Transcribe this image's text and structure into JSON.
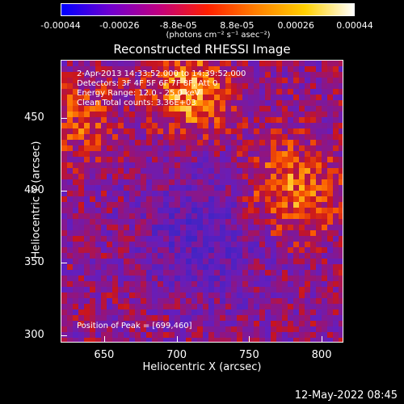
{
  "colorbar": {
    "ticks": [
      "-0.00044",
      "-0.00026",
      "-8.8e-05",
      "8.8e-05",
      "0.00026",
      "0.00044"
    ],
    "unit": "(photons cm⁻² s⁻¹ asec⁻²)",
    "gradient": [
      "#0000ff",
      "#7000d0",
      "#c00080",
      "#ff2000",
      "#ff8000",
      "#ffd000",
      "#ffffff"
    ]
  },
  "title": "Reconstructed RHESSI Image",
  "annotations": {
    "line1": "2-Apr-2013 14:33:52.000 to 14:39:52.000",
    "line2": "Detectors: 3F 4F 5F 6F 7F 8F, Att 0",
    "line3": "Energy Range: 12.0 - 25.0 keV",
    "line4": "Clean    Total counts: 3.36E+03",
    "peak": "Position of Peak = [699,460]"
  },
  "footer_date": "12-May-2022 08:45",
  "chart_data": {
    "type": "heatmap",
    "title": "Reconstructed RHESSI Image",
    "xlabel": "Heliocentric X (arcsec)",
    "ylabel": "Heliocentric Y (arcsec)",
    "xlim": [
      620,
      815
    ],
    "ylim": [
      295,
      490
    ],
    "xticks": [
      "650",
      "700",
      "750",
      "800"
    ],
    "xtick_values": [
      650,
      700,
      750,
      800
    ],
    "yticks": [
      "300",
      "350",
      "400",
      "450"
    ],
    "ytick_values": [
      300,
      350,
      400,
      450
    ],
    "colorbar_range": [
      -0.00044,
      0.00044
    ],
    "peak_position": [
      699,
      460
    ]
  }
}
